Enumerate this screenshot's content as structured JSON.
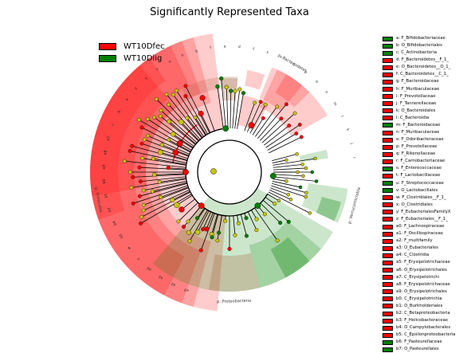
{
  "chart_data": {
    "type": "cladogram",
    "title": "Significantly Represented Taxa",
    "legend": {
      "placement": "top-left",
      "groups": [
        {
          "name": "WT10Dfec",
          "color": "#ff0000"
        },
        {
          "name": "WT10Dlig",
          "color": "#008000"
        }
      ]
    },
    "clade_labels": [
      {
        "text": "p: Firmicutes",
        "color": "#ff0000"
      },
      {
        "text": "p: Bacteroidetes",
        "color": "#ff0000"
      },
      {
        "text": "p: Verrucomicrobia",
        "color": "#ff0000"
      },
      {
        "text": "p: Proteobacteria",
        "color": "#008000"
      }
    ],
    "sector_letters": [
      "a3",
      "a2",
      "a1",
      "a0",
      "x",
      "w",
      "b5",
      "b4",
      "b2",
      "b1",
      "b0",
      "a9",
      "a8",
      "a7",
      "c",
      "b",
      "a",
      "z",
      "y",
      "v",
      "u",
      "h",
      "g",
      "f",
      "e",
      "d",
      "t",
      "s",
      "r",
      "q",
      "p",
      "o",
      "n",
      "m",
      "l",
      "k",
      "j",
      "i"
    ],
    "key": [
      {
        "text": "a: F_Bifidobacteriaceae",
        "color": "#008000"
      },
      {
        "text": "b: O_Bifidobacteriales",
        "color": "#008000"
      },
      {
        "text": "c: C_Actinobacteria",
        "color": "#008000"
      },
      {
        "text": "d: F_Bacteroidetes__F_1_",
        "color": "#ff0000"
      },
      {
        "text": "e: O_Bacteroidetes__O_1_",
        "color": "#ff0000"
      },
      {
        "text": "f: C_Bacteroidetes__C_1_",
        "color": "#ff0000"
      },
      {
        "text": "g: F_Bacteroidaceae",
        "color": "#ff0000"
      },
      {
        "text": "h: F_Muribaculaceae",
        "color": "#ff0000"
      },
      {
        "text": "i: F_Prevotellaceae",
        "color": "#ff0000"
      },
      {
        "text": "j: F_Tannerellaceae",
        "color": "#ff0000"
      },
      {
        "text": "k: O_Bacteroidales",
        "color": "#ff0000"
      },
      {
        "text": "l: C_Bacteroidia",
        "color": "#ff0000"
      },
      {
        "text": "m: F_Bacteroidaceae",
        "color": "#008000"
      },
      {
        "text": "n: F_Muribaculaceae",
        "color": "#ff0000"
      },
      {
        "text": "o: F_Odoribacteraceae",
        "color": "#ff0000"
      },
      {
        "text": "p: F_Prevotellaceae",
        "color": "#ff0000"
      },
      {
        "text": "q: F_Rikenellaceae",
        "color": "#ff0000"
      },
      {
        "text": "r: F_Carnobacteriaceae",
        "color": "#ff0000"
      },
      {
        "text": "s: F_Enterococcaceae",
        "color": "#008000"
      },
      {
        "text": "t: F_Lactobacillaceae",
        "color": "#ff0000"
      },
      {
        "text": "u: F_Streptococcaceae",
        "color": "#008000"
      },
      {
        "text": "v: O_Lactobacillales",
        "color": "#008000"
      },
      {
        "text": "w: F_Clostridiales__F_1_",
        "color": "#ff0000"
      },
      {
        "text": "x: O_Clostridiales",
        "color": "#ff0000"
      },
      {
        "text": "y: F_EubacterialesFamilyX",
        "color": "#ff0000"
      },
      {
        "text": "z: F_Eubacteriales__F_1_",
        "color": "#ff0000"
      },
      {
        "text": "a0: F_Lachnospiraceae",
        "color": "#ff0000"
      },
      {
        "text": "a1: F_Oscillospiraceae",
        "color": "#ff0000"
      },
      {
        "text": "a2: F_multifamily",
        "color": "#ff0000"
      },
      {
        "text": "a3: O_Eubacteriales",
        "color": "#ff0000"
      },
      {
        "text": "a4: C_Clostridia",
        "color": "#ff0000"
      },
      {
        "text": "a5: F_Erysipelotrichaceae",
        "color": "#ff0000"
      },
      {
        "text": "a6: O_Erysipelotrichales",
        "color": "#ff0000"
      },
      {
        "text": "a7: C_Erysipelotrichi",
        "color": "#ff0000"
      },
      {
        "text": "a8: F_Erysipelotrichaceae",
        "color": "#ff0000"
      },
      {
        "text": "a9: O_Erysipelotrichales",
        "color": "#ff0000"
      },
      {
        "text": "b0: C_Erysipelotrichia",
        "color": "#ff0000"
      },
      {
        "text": "b1: O_Burkholderiales",
        "color": "#ff0000"
      },
      {
        "text": "b2: C_Betaproteobacteria",
        "color": "#ff0000"
      },
      {
        "text": "b3: F_Helicobacteraceae",
        "color": "#ff0000"
      },
      {
        "text": "b4: O_Campylobacterales",
        "color": "#ff0000"
      },
      {
        "text": "b5: C_Epsilonproteobacteria",
        "color": "#ff0000"
      },
      {
        "text": "b6: F_Pasteurellaceae",
        "color": "#008000"
      },
      {
        "text": "b7: O_Pasteurellales",
        "color": "#008000"
      }
    ]
  }
}
